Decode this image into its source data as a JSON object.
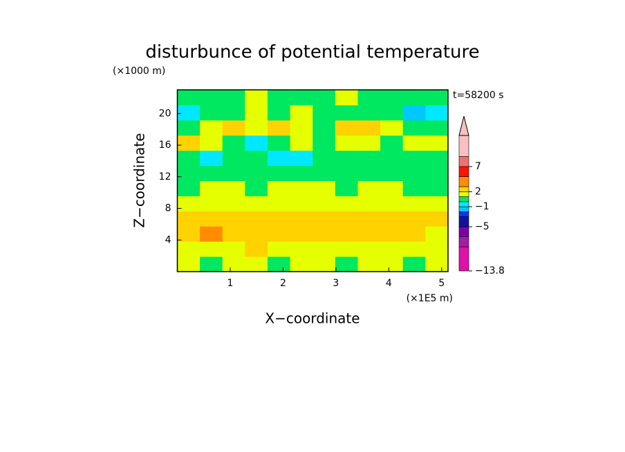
{
  "chart_data": {
    "type": "contour",
    "title": "disturbunce of potential temperature",
    "y_unit": "(×1000 m)",
    "x_unit": "(×1E5 m)",
    "xlabel": "X−coordinate",
    "ylabel": "Z−coordinate",
    "annotation": "t=58200 s",
    "xlim": [
      0,
      5.12
    ],
    "ylim": [
      0,
      23
    ],
    "xticks": [
      1,
      2,
      3,
      4,
      5
    ],
    "yticks": [
      4,
      8,
      12,
      16,
      20
    ],
    "z": [
      [
        1.5,
        0.5,
        1.5,
        1.5,
        0.5,
        1.5,
        1.5,
        0.5,
        1.5,
        1.5,
        0.5,
        1.5
      ],
      [
        1.5,
        1.5,
        1.5,
        2.5,
        1.5,
        1.5,
        1.5,
        1.5,
        1.5,
        1.5,
        1.5,
        1.5
      ],
      [
        2.5,
        3.5,
        2.5,
        2.5,
        2.5,
        2.5,
        2.5,
        2.5,
        2.5,
        2.5,
        2.5,
        1.5
      ],
      [
        2.5,
        2.5,
        2.5,
        2.5,
        2.5,
        2.5,
        2.5,
        2.5,
        2.5,
        2.5,
        2.5,
        2.5
      ],
      [
        1.5,
        1.5,
        1.5,
        1.5,
        1.5,
        1.5,
        1.5,
        1.5,
        1.5,
        1.5,
        1.5,
        1.5
      ],
      [
        0.5,
        1.5,
        1.5,
        0.5,
        1.5,
        1.5,
        1.5,
        0.5,
        1.5,
        1.5,
        0.5,
        0.5
      ],
      [
        0.5,
        0.5,
        0.5,
        0.5,
        0.5,
        0.5,
        0.5,
        0.5,
        0.5,
        0.5,
        0.5,
        0.5
      ],
      [
        0.5,
        -0.5,
        0.5,
        0.5,
        -0.5,
        -0.5,
        0.5,
        0.5,
        0.5,
        0.5,
        0.5,
        0.5
      ],
      [
        2.5,
        1.5,
        0.5,
        -0.5,
        0.5,
        1.5,
        0.5,
        1.5,
        1.5,
        0.5,
        1.5,
        1.5
      ],
      [
        0.5,
        1.5,
        2.5,
        1.5,
        2.5,
        1.5,
        0.5,
        2.5,
        2.5,
        1.5,
        0.5,
        0.5
      ],
      [
        -0.5,
        0.5,
        0.5,
        1.5,
        0.5,
        1.5,
        0.5,
        0.5,
        0.5,
        0.5,
        -1.5,
        -0.5
      ],
      [
        0.5,
        0.5,
        0.5,
        1.5,
        0.5,
        0.5,
        0.5,
        1.5,
        0.5,
        0.5,
        0.5,
        0.5
      ]
    ],
    "colorbar": {
      "levels": [
        -13.8,
        -9,
        -7,
        -5,
        -3,
        -2,
        -1,
        0,
        1,
        2,
        3,
        5,
        7,
        9,
        13.2
      ],
      "colors": [
        "#e010a8",
        "#a41ca8",
        "#7c00a8",
        "#1410a0",
        "#0038ff",
        "#00c8ff",
        "#00e8ff",
        "#00e860",
        "#e6ff00",
        "#ffd200",
        "#ff8c00",
        "#ff1400",
        "#f07070",
        "#f8c0c0"
      ],
      "ticks": [
        7,
        2,
        {
          "value": -1,
          "label": "−1"
        },
        {
          "value": -5,
          "label": "−5"
        },
        {
          "value": -13.8,
          "label": "−13.8"
        }
      ]
    }
  }
}
